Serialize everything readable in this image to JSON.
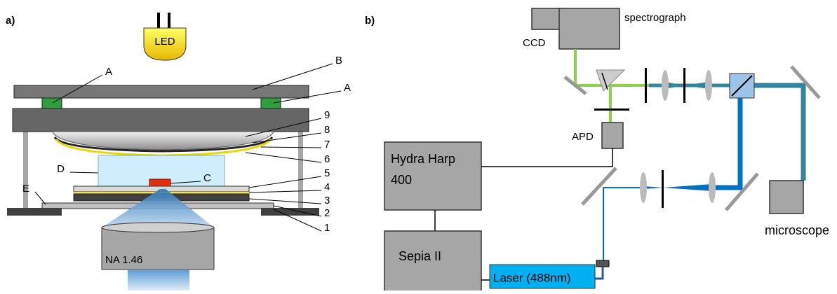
{
  "panel_a": {
    "label": "a)",
    "led": "LED",
    "objective": "NA 1.46",
    "callouts": [
      "A",
      "B",
      "A",
      "9",
      "8",
      "7",
      "6",
      "D",
      "C",
      "5",
      "4",
      "3",
      "2",
      "1",
      "E"
    ]
  },
  "panel_b": {
    "label": "b)",
    "spectrograph": "spectrograph",
    "ccd": "CCD",
    "apd": "APD",
    "hydra_harp": [
      "Hydra Harp",
      "400"
    ],
    "sepia": "Sepia II",
    "laser": "Laser (488nm)",
    "microscope": "microscope"
  }
}
